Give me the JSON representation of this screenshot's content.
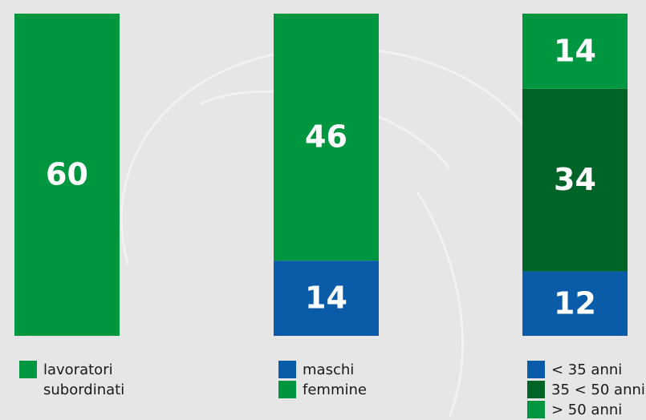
{
  "chart_data": [
    {
      "type": "stacked_bar",
      "series": [
        {
          "name": "lavoratori subordinati",
          "color": "#009640",
          "values": [
            60
          ]
        }
      ]
    },
    {
      "type": "stacked_bar",
      "series": [
        {
          "name": "maschi",
          "color": "#0a5ca8",
          "values": [
            14
          ]
        },
        {
          "name": "femmine",
          "color": "#009640",
          "values": [
            46
          ]
        }
      ]
    },
    {
      "type": "stacked_bar",
      "series": [
        {
          "name": "< 35 anni",
          "color": "#0a5ca8",
          "values": [
            12
          ]
        },
        {
          "name": "35 < 50 anni",
          "color": "#006428",
          "values": [
            34
          ]
        },
        {
          "name": "> 50 anni",
          "color": "#009640",
          "values": [
            14
          ]
        }
      ]
    }
  ]
}
